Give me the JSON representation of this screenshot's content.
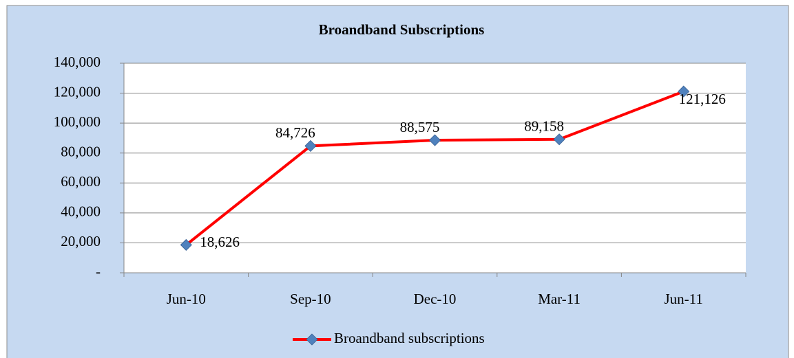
{
  "chart_data": {
    "type": "line",
    "title": "Broandband Subscriptions",
    "categories": [
      "Jun-10",
      "Sep-10",
      "Dec-10",
      "Mar-11",
      "Jun-11"
    ],
    "series": [
      {
        "name": "Broandband subscriptions",
        "color": "#ff0000",
        "marker_color": "#4f81bd",
        "values": [
          18626,
          84726,
          88575,
          89158,
          121126
        ],
        "value_labels": [
          "18,626",
          "84,726",
          "88,575",
          "89,158",
          "121,126"
        ]
      }
    ],
    "ylim": [
      0,
      140000
    ],
    "yticks": [
      {
        "value": 0,
        "label": "-"
      },
      {
        "value": 20000,
        "label": "20,000"
      },
      {
        "value": 40000,
        "label": "40,000"
      },
      {
        "value": 60000,
        "label": "60,000"
      },
      {
        "value": 80000,
        "label": "80,000"
      },
      {
        "value": 100000,
        "label": "100,000"
      },
      {
        "value": 120000,
        "label": "120,000"
      },
      {
        "value": 140000,
        "label": "140,000"
      }
    ],
    "grid": true,
    "legend": "bottom"
  }
}
